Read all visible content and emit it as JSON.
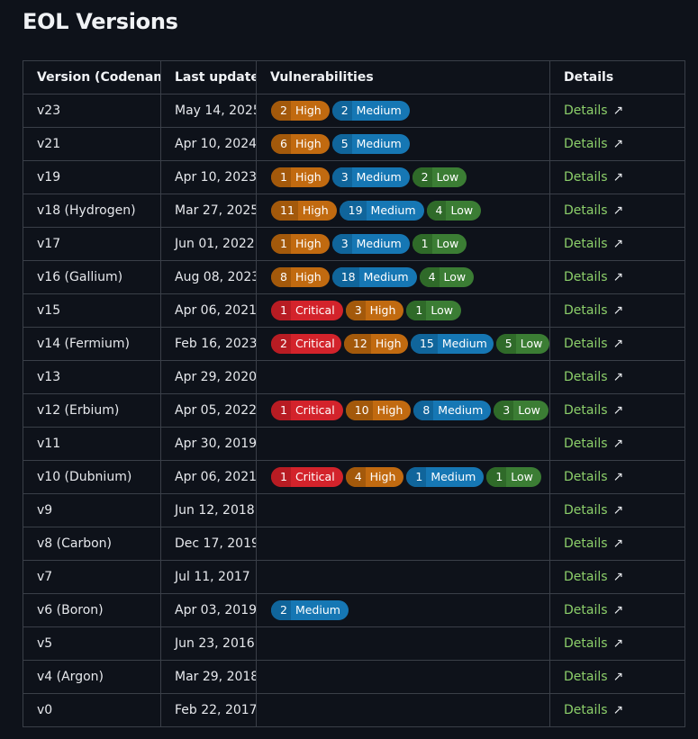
{
  "page": {
    "title": "EOL Versions"
  },
  "table": {
    "headers": [
      "Version (Codename)",
      "Last updated",
      "Vulnerabilities",
      "Details"
    ],
    "details_label": "Details",
    "details_arrow": "↗",
    "rows": [
      {
        "version": "v23",
        "date": "May 14, 2025",
        "vulns": [
          {
            "count": "2",
            "label": "High",
            "severity": "high"
          },
          {
            "count": "2",
            "label": "Medium",
            "severity": "medium"
          }
        ]
      },
      {
        "version": "v21",
        "date": "Apr 10, 2024",
        "vulns": [
          {
            "count": "6",
            "label": "High",
            "severity": "high"
          },
          {
            "count": "5",
            "label": "Medium",
            "severity": "medium"
          }
        ]
      },
      {
        "version": "v19",
        "date": "Apr 10, 2023",
        "vulns": [
          {
            "count": "1",
            "label": "High",
            "severity": "high"
          },
          {
            "count": "3",
            "label": "Medium",
            "severity": "medium"
          },
          {
            "count": "2",
            "label": "Low",
            "severity": "low"
          }
        ]
      },
      {
        "version": "v18 (Hydrogen)",
        "date": "Mar 27, 2025",
        "vulns": [
          {
            "count": "11",
            "label": "High",
            "severity": "high"
          },
          {
            "count": "19",
            "label": "Medium",
            "severity": "medium"
          },
          {
            "count": "4",
            "label": "Low",
            "severity": "low"
          }
        ]
      },
      {
        "version": "v17",
        "date": "Jun 01, 2022",
        "vulns": [
          {
            "count": "1",
            "label": "High",
            "severity": "high"
          },
          {
            "count": "3",
            "label": "Medium",
            "severity": "medium"
          },
          {
            "count": "1",
            "label": "Low",
            "severity": "low"
          }
        ]
      },
      {
        "version": "v16 (Gallium)",
        "date": "Aug 08, 2023",
        "vulns": [
          {
            "count": "8",
            "label": "High",
            "severity": "high"
          },
          {
            "count": "18",
            "label": "Medium",
            "severity": "medium"
          },
          {
            "count": "4",
            "label": "Low",
            "severity": "low"
          }
        ]
      },
      {
        "version": "v15",
        "date": "Apr 06, 2021",
        "vulns": [
          {
            "count": "1",
            "label": "Critical",
            "severity": "critical"
          },
          {
            "count": "3",
            "label": "High",
            "severity": "high"
          },
          {
            "count": "1",
            "label": "Low",
            "severity": "low"
          }
        ]
      },
      {
        "version": "v14 (Fermium)",
        "date": "Feb 16, 2023",
        "vulns": [
          {
            "count": "2",
            "label": "Critical",
            "severity": "critical"
          },
          {
            "count": "12",
            "label": "High",
            "severity": "high"
          },
          {
            "count": "15",
            "label": "Medium",
            "severity": "medium"
          },
          {
            "count": "5",
            "label": "Low",
            "severity": "low"
          }
        ]
      },
      {
        "version": "v13",
        "date": "Apr 29, 2020",
        "vulns": []
      },
      {
        "version": "v12 (Erbium)",
        "date": "Apr 05, 2022",
        "vulns": [
          {
            "count": "1",
            "label": "Critical",
            "severity": "critical"
          },
          {
            "count": "10",
            "label": "High",
            "severity": "high"
          },
          {
            "count": "8",
            "label": "Medium",
            "severity": "medium"
          },
          {
            "count": "3",
            "label": "Low",
            "severity": "low"
          }
        ]
      },
      {
        "version": "v11",
        "date": "Apr 30, 2019",
        "vulns": []
      },
      {
        "version": "v10 (Dubnium)",
        "date": "Apr 06, 2021",
        "vulns": [
          {
            "count": "1",
            "label": "Critical",
            "severity": "critical"
          },
          {
            "count": "4",
            "label": "High",
            "severity": "high"
          },
          {
            "count": "1",
            "label": "Medium",
            "severity": "medium"
          },
          {
            "count": "1",
            "label": "Low",
            "severity": "low"
          }
        ]
      },
      {
        "version": "v9",
        "date": "Jun 12, 2018",
        "vulns": []
      },
      {
        "version": "v8 (Carbon)",
        "date": "Dec 17, 2019",
        "vulns": []
      },
      {
        "version": "v7",
        "date": "Jul 11, 2017",
        "vulns": []
      },
      {
        "version": "v6 (Boron)",
        "date": "Apr 03, 2019",
        "vulns": [
          {
            "count": "2",
            "label": "Medium",
            "severity": "medium"
          }
        ]
      },
      {
        "version": "v5",
        "date": "Jun 23, 2016",
        "vulns": []
      },
      {
        "version": "v4 (Argon)",
        "date": "Mar 29, 2018",
        "vulns": []
      },
      {
        "version": "v0",
        "date": "Feb 22, 2017",
        "vulns": []
      }
    ]
  },
  "colors": {
    "background": "#0e121a",
    "critical": "#d3232b",
    "high": "#c16a10",
    "medium": "#1677b4",
    "low": "#3b7d34",
    "link": "#8ccf6a"
  }
}
